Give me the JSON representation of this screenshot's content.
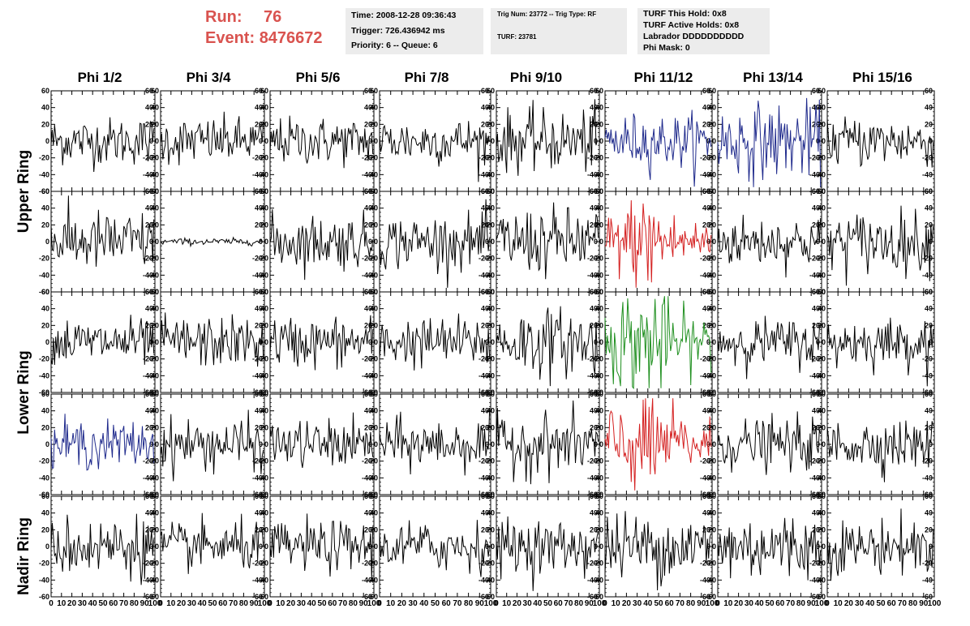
{
  "header": {
    "run_label": "Run:",
    "run_value": "76",
    "event_label": "Event:",
    "event_value": "8476672",
    "time": "Time: 2008-12-28 09:36:43",
    "trigger": "Trigger: 726.436942 ms",
    "priority": "Priority: 6 -- Queue: 6",
    "trig_num": "Trig Num: 23772 -- Trig Type: RF",
    "turf": "TURF: 23781",
    "turf_this_hold": "TURF This Hold: 0x8",
    "turf_active_holds": "TURF Active Holds: 0x8",
    "labrador": "Labrador DDDDDDDDDD",
    "phi_mask": "Phi Mask: 0",
    "accent_color": "#d9534f"
  },
  "columns": [
    "Phi 1/2",
    "Phi 3/4",
    "Phi 5/6",
    "Phi 7/8",
    "Phi 9/10",
    "Phi 11/12",
    "Phi 13/14",
    "Phi 15/16"
  ],
  "row_groups": [
    "Upper Ring",
    "Lower Ring",
    "Nadir Ring"
  ],
  "chart_data": {
    "type": "line",
    "layout": "grid of 5 rows x 8 columns of waveform panels",
    "xlim": [
      0,
      100
    ],
    "ylim": [
      -60,
      60
    ],
    "x_ticks": [
      "0",
      "10",
      "20",
      "30",
      "40",
      "50",
      "60",
      "70",
      "80",
      "90",
      "100"
    ],
    "y_ticks": [
      "60",
      "40",
      "20",
      "0",
      "-20",
      "-40",
      "-60"
    ],
    "samples_per_panel": 90,
    "series_colors": {
      "default": "#000000",
      "blue": "#1f2a8c",
      "red": "#d42020",
      "green": "#1f8f1f"
    },
    "panels": [
      [
        "default",
        "default",
        "default",
        "default",
        "default",
        "blue",
        "blue",
        "default"
      ],
      [
        "default",
        "default",
        "default",
        "default",
        "default",
        "red",
        "default",
        "default"
      ],
      [
        "default",
        "default",
        "default",
        "default",
        "default",
        "green",
        "default",
        "default"
      ],
      [
        "blue",
        "default",
        "default",
        "default",
        "default",
        "red",
        "default",
        "default"
      ],
      [
        "default",
        "default",
        "default",
        "default",
        "default",
        "default",
        "default",
        "default"
      ]
    ],
    "amplitudes": [
      [
        14,
        14,
        14,
        14,
        18,
        16,
        22,
        15
      ],
      [
        18,
        2,
        16,
        16,
        20,
        20,
        15,
        18
      ],
      [
        14,
        15,
        15,
        15,
        20,
        25,
        14,
        14
      ],
      [
        14,
        15,
        14,
        15,
        18,
        24,
        15,
        15
      ],
      [
        18,
        14,
        15,
        15,
        16,
        20,
        20,
        16
      ]
    ]
  }
}
